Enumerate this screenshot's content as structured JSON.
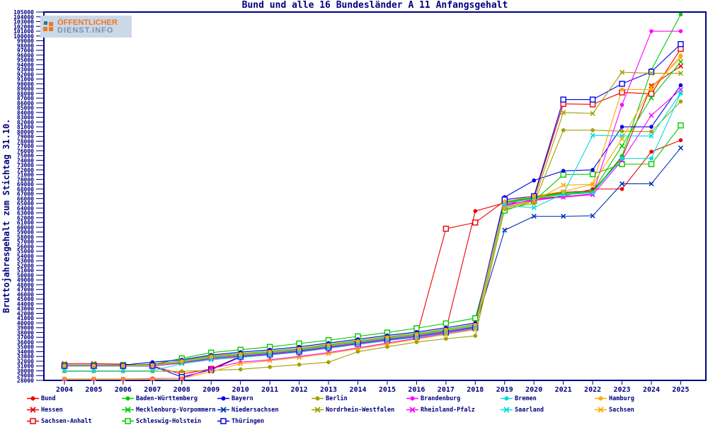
{
  "title": "Bund und alle 16 Bundesländer A 11 Anfangsgehalt",
  "ylabel": "Bruttojahresgehalt zum Stichtag 31.10.",
  "logo": {
    "line1": "ÖFFENTLICHER",
    "line2": "DIENST.INFO",
    "accent_color": "#ef7722",
    "secondary_color": "#7a92ac",
    "bg_color": "#cbd8e8"
  },
  "axis_color": "#000080",
  "chart_data": {
    "type": "line",
    "x": [
      2004,
      2005,
      2006,
      2007,
      2008,
      2009,
      2010,
      2011,
      2012,
      2013,
      2014,
      2015,
      2016,
      2017,
      2018,
      2019,
      2020,
      2021,
      2022,
      2023,
      2024,
      2025
    ],
    "ylim": [
      28000,
      105000
    ],
    "ytick_step": 1000,
    "grid": false,
    "legend_position": "bottom",
    "series": [
      {
        "id": "bund",
        "label": "Bund",
        "color": "#ee0000",
        "marker": "dot",
        "values": [
          31100,
          31100,
          31100,
          31400,
          32000,
          32900,
          33400,
          33900,
          34500,
          35300,
          36100,
          36900,
          37600,
          38500,
          63400,
          65100,
          65900,
          66500,
          68000,
          68000,
          75800,
          78200
        ]
      },
      {
        "id": "hessen",
        "label": "Hessen",
        "color": "#ee0000",
        "marker": "x",
        "values": [
          31500,
          31500,
          31400,
          31000,
          31900,
          33000,
          33500,
          34000,
          34600,
          35400,
          36200,
          37000,
          37700,
          38600,
          39600,
          64600,
          66500,
          67300,
          67600,
          74500,
          89600,
          93700
        ]
      },
      {
        "id": "sachsen-anhalt",
        "label": "Sachsen-Anhalt",
        "color": "#ee0000",
        "marker": "square",
        "values": [
          31000,
          31000,
          31000,
          31000,
          29300,
          30400,
          33000,
          33500,
          34100,
          34900,
          35700,
          36500,
          37200,
          59700,
          61000,
          65500,
          66200,
          85800,
          85700,
          88200,
          87900,
          97300
        ]
      },
      {
        "id": "baden-wuerttemberg",
        "label": "Baden-Württemberg",
        "color": "#00c800",
        "marker": "dot",
        "values": [
          31100,
          31100,
          31100,
          31200,
          32100,
          33100,
          33600,
          34100,
          34700,
          35500,
          36300,
          37100,
          37800,
          38700,
          39700,
          65000,
          66200,
          67000,
          67300,
          74900,
          92900,
          104500
        ]
      },
      {
        "id": "mecklenburg-vorpommern",
        "label": "Mecklenburg-Vorpommern",
        "color": "#00c800",
        "marker": "x",
        "values": [
          31000,
          31000,
          31000,
          31000,
          31800,
          32700,
          33300,
          33800,
          34400,
          35200,
          36000,
          36800,
          37500,
          38400,
          39400,
          65200,
          66300,
          67200,
          67500,
          77000,
          87100,
          94600
        ]
      },
      {
        "id": "schleswig-holstein",
        "label": "Schleswig-Holstein",
        "color": "#00c800",
        "marker": "square",
        "values": [
          31200,
          31200,
          31200,
          31300,
          32600,
          33800,
          34400,
          35000,
          35700,
          36400,
          37200,
          38000,
          38900,
          39900,
          41000,
          63500,
          65500,
          71000,
          71100,
          73200,
          73200,
          81300
        ]
      },
      {
        "id": "bayern",
        "label": "Bayern",
        "color": "#0000ee",
        "marker": "dot",
        "values": [
          31200,
          31200,
          31200,
          31800,
          32300,
          33300,
          33900,
          34400,
          35000,
          35800,
          36600,
          37400,
          38100,
          39000,
          40000,
          66300,
          69800,
          71800,
          72000,
          81000,
          81000,
          89700
        ]
      },
      {
        "id": "niedersachsen",
        "label": "Niedersachsen",
        "color": "#0033bb",
        "marker": "x",
        "values": [
          31000,
          31000,
          31000,
          31000,
          31700,
          32600,
          33100,
          33600,
          34200,
          35000,
          35800,
          36600,
          37300,
          38200,
          39200,
          59400,
          62300,
          62300,
          62400,
          69100,
          69100,
          76600
        ]
      },
      {
        "id": "thueringen",
        "label": "Thüringen",
        "color": "#0000ee",
        "marker": "square",
        "values": [
          31000,
          31000,
          31000,
          31000,
          28700,
          30200,
          32900,
          33400,
          34000,
          34800,
          35600,
          36400,
          37100,
          38000,
          39000,
          65800,
          66500,
          86700,
          86700,
          90000,
          92500,
          98300
        ]
      },
      {
        "id": "berlin",
        "label": "Berlin",
        "color": "#a0a000",
        "marker": "dot",
        "values": [
          29900,
          29900,
          29900,
          29900,
          29900,
          30100,
          30300,
          30800,
          31300,
          31800,
          34000,
          35000,
          36000,
          36700,
          37300,
          63800,
          65000,
          80300,
          80300,
          80100,
          80000,
          86300
        ]
      },
      {
        "id": "nordrhein-westfalen",
        "label": "Nordrhein-Westfalen",
        "color": "#a0a000",
        "marker": "x",
        "values": [
          31000,
          31000,
          31000,
          31000,
          31800,
          32700,
          33200,
          33700,
          34300,
          35100,
          35900,
          36700,
          37400,
          38300,
          39300,
          64300,
          65500,
          84000,
          83800,
          92400,
          92200,
          92200
        ]
      },
      {
        "id": "brandenburg",
        "label": "Brandenburg",
        "color": "#ff00ff",
        "marker": "dot",
        "values": [
          28300,
          28300,
          28300,
          28400,
          28400,
          30500,
          31800,
          32300,
          33000,
          33800,
          34800,
          35800,
          36800,
          37800,
          38800,
          64800,
          65600,
          66400,
          67000,
          85600,
          101000,
          101000
        ]
      },
      {
        "id": "rheinland-pfalz",
        "label": "Rheinland-Pfalz",
        "color": "#ff00ff",
        "marker": "x",
        "values": [
          31000,
          31000,
          31000,
          31000,
          31600,
          32500,
          33000,
          33500,
          34100,
          34900,
          35700,
          36500,
          37200,
          38100,
          39100,
          64500,
          65800,
          66300,
          66800,
          74000,
          83400,
          88800
        ]
      },
      {
        "id": "bremen",
        "label": "Bremen",
        "color": "#00dede",
        "marker": "dot",
        "values": [
          31000,
          31000,
          31000,
          31100,
          31900,
          32800,
          33300,
          33800,
          34400,
          35200,
          36000,
          36800,
          37500,
          38400,
          39400,
          65000,
          66000,
          66800,
          67200,
          74400,
          74400,
          88000
        ]
      },
      {
        "id": "saarland",
        "label": "Saarland",
        "color": "#00dede",
        "marker": "x",
        "values": [
          30000,
          30000,
          30000,
          30000,
          31500,
          32300,
          32800,
          33300,
          33900,
          34700,
          35500,
          36300,
          37000,
          37900,
          38900,
          64500,
          64100,
          67000,
          79200,
          79100,
          79100,
          88100
        ]
      },
      {
        "id": "hamburg",
        "label": "Hamburg",
        "color": "#ffaa00",
        "marker": "dot",
        "values": [
          31100,
          31100,
          31100,
          31200,
          32000,
          33000,
          33500,
          34000,
          34600,
          35400,
          36200,
          37000,
          37700,
          38600,
          39600,
          65400,
          66500,
          67500,
          69000,
          88800,
          88800,
          95900
        ]
      },
      {
        "id": "sachsen",
        "label": "Sachsen",
        "color": "#ffaa00",
        "marker": "x",
        "values": [
          28300,
          28300,
          28300,
          28300,
          28400,
          29800,
          31500,
          32100,
          32800,
          33600,
          34600,
          35600,
          36600,
          37600,
          38600,
          64000,
          65500,
          68800,
          69000,
          78500,
          89300,
          95400
        ]
      }
    ]
  },
  "legend": {
    "items": [
      {
        "series": "bund",
        "label": "Bund",
        "col": 0,
        "row": 0
      },
      {
        "series": "hessen",
        "label": "Hessen",
        "col": 0,
        "row": 1
      },
      {
        "series": "sachsen-anhalt",
        "label": "Sachsen-Anhalt",
        "col": 0,
        "row": 2
      },
      {
        "series": "baden-wuerttemberg",
        "label": "Baden-Württemberg",
        "col": 1,
        "row": 0
      },
      {
        "series": "mecklenburg-vorpommern",
        "label": "Mecklenburg-Vorpommern",
        "col": 1,
        "row": 1
      },
      {
        "series": "schleswig-holstein",
        "label": "Schleswig-Holstein",
        "col": 1,
        "row": 2
      },
      {
        "series": "bayern",
        "label": "Bayern",
        "col": 2,
        "row": 0
      },
      {
        "series": "niedersachsen",
        "label": "Niedersachsen",
        "col": 2,
        "row": 1
      },
      {
        "series": "thueringen",
        "label": "Thüringen",
        "col": 2,
        "row": 2
      },
      {
        "series": "berlin",
        "label": "Berlin",
        "col": 3,
        "row": 0
      },
      {
        "series": "nordrhein-westfalen",
        "label": "Nordrhein-Westfalen",
        "col": 3,
        "row": 1
      },
      {
        "series": "brandenburg",
        "label": "Brandenburg",
        "col": 4,
        "row": 0
      },
      {
        "series": "rheinland-pfalz",
        "label": "Rheinland-Pfalz",
        "col": 4,
        "row": 1
      },
      {
        "series": "bremen",
        "label": "Bremen",
        "col": 5,
        "row": 0
      },
      {
        "series": "saarland",
        "label": "Saarland",
        "col": 5,
        "row": 1
      },
      {
        "series": "hamburg",
        "label": "Hamburg",
        "col": 6,
        "row": 0
      },
      {
        "series": "sachsen",
        "label": "Sachsen",
        "col": 6,
        "row": 1
      }
    ]
  }
}
